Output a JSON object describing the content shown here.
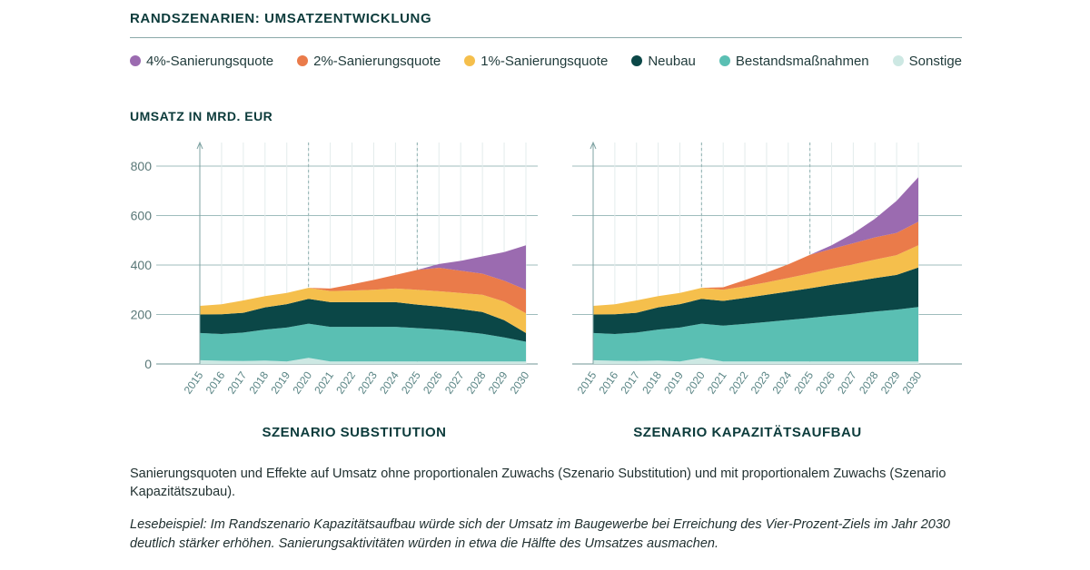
{
  "title": "RANDSZENARIEN: UMSATZENTWICKLUNG",
  "y_axis_label": "UMSATZ IN MRD. EUR",
  "legend": [
    {
      "label": "4%-Sanierungsquote",
      "color": "#9b6bb0"
    },
    {
      "label": "2%-Sanierungsquote",
      "color": "#ea7b4a"
    },
    {
      "label": "1%-Sanierungsquote",
      "color": "#f5bf4c"
    },
    {
      "label": "Neubau",
      "color": "#0b4747"
    },
    {
      "label": "Bestandsmaßnahmen",
      "color": "#5abfb3"
    },
    {
      "label": "Sonstige",
      "color": "#cde8e3"
    }
  ],
  "caption": "Sanierungsquoten und Effekte auf Umsatz ohne proportionalen Zuwachs (Szenario Substitution) und mit proportionalem Zuwachs (Szenario Kapazitätszubau).",
  "example": "Lesebeispiel: Im Randszenario Kapazitätsaufbau würde sich der Umsatz im Baugewerbe bei Erreichung des Vier-Prozent-Ziels im Jahr 2030 deutlich stärker erhöhen. Sanierungsaktivitäten würden in etwa die Hälfte des Umsatzes ausmachen.",
  "chart_data": [
    {
      "type": "area",
      "title": "SZENARIO SUBSTITUTION",
      "x": [
        "2015",
        "2016",
        "2017",
        "2018",
        "2019",
        "2020",
        "2021",
        "2022",
        "2023",
        "2024",
        "2025",
        "2026",
        "2027",
        "2028",
        "2029",
        "2030"
      ],
      "ylim": [
        0,
        850
      ],
      "yticks": [
        0,
        200,
        400,
        600,
        800
      ],
      "stacked": true,
      "series": [
        {
          "name": "Sonstige",
          "values": [
            15,
            13,
            12,
            14,
            10,
            25,
            10,
            10,
            10,
            10,
            10,
            10,
            10,
            10,
            10,
            10
          ]
        },
        {
          "name": "Bestandsmaßnahmen",
          "values": [
            110,
            108,
            115,
            125,
            137,
            138,
            140,
            140,
            140,
            140,
            135,
            130,
            122,
            112,
            97,
            80
          ]
        },
        {
          "name": "Neubau",
          "values": [
            75,
            80,
            80,
            90,
            95,
            100,
            100,
            100,
            100,
            100,
            95,
            92,
            90,
            88,
            70,
            35
          ]
        },
        {
          "name": "1%-Sanierungsquote",
          "values": [
            35,
            40,
            50,
            45,
            45,
            45,
            45,
            47,
            50,
            55,
            60,
            62,
            65,
            70,
            75,
            80
          ]
        },
        {
          "name": "2%-Sanierungsquote",
          "values": [
            0,
            0,
            0,
            0,
            0,
            0,
            10,
            25,
            40,
            55,
            80,
            95,
            90,
            85,
            85,
            95
          ]
        },
        {
          "name": "4%-Sanierungsquote",
          "values": [
            0,
            0,
            0,
            0,
            0,
            0,
            0,
            0,
            0,
            0,
            0,
            15,
            40,
            70,
            115,
            180
          ]
        }
      ]
    },
    {
      "type": "area",
      "title": "SZENARIO KAPAZITÄTSAUFBAU",
      "x": [
        "2015",
        "2016",
        "2017",
        "2018",
        "2019",
        "2020",
        "2021",
        "2022",
        "2023",
        "2024",
        "2025",
        "2026",
        "2027",
        "2028",
        "2029",
        "2030"
      ],
      "ylim": [
        0,
        850
      ],
      "yticks": [
        0,
        200,
        400,
        600,
        800
      ],
      "stacked": true,
      "series": [
        {
          "name": "Sonstige",
          "values": [
            15,
            13,
            12,
            14,
            10,
            25,
            10,
            10,
            10,
            10,
            10,
            10,
            10,
            10,
            10,
            10
          ]
        },
        {
          "name": "Bestandsmaßnahmen",
          "values": [
            110,
            108,
            115,
            125,
            137,
            138,
            145,
            152,
            160,
            168,
            176,
            185,
            193,
            202,
            210,
            220
          ]
        },
        {
          "name": "Neubau",
          "values": [
            75,
            80,
            80,
            90,
            95,
            100,
            100,
            105,
            110,
            115,
            120,
            125,
            130,
            135,
            140,
            160
          ]
        },
        {
          "name": "1%-Sanierungsquote",
          "values": [
            35,
            40,
            50,
            45,
            45,
            45,
            45,
            47,
            50,
            55,
            60,
            65,
            70,
            75,
            80,
            90
          ]
        },
        {
          "name": "2%-Sanierungsquote",
          "values": [
            0,
            0,
            0,
            0,
            0,
            0,
            10,
            25,
            40,
            55,
            75,
            80,
            85,
            90,
            90,
            95
          ]
        },
        {
          "name": "4%-Sanierungsquote",
          "values": [
            0,
            0,
            0,
            0,
            0,
            0,
            0,
            0,
            0,
            0,
            0,
            15,
            40,
            75,
            130,
            180
          ]
        }
      ]
    }
  ]
}
